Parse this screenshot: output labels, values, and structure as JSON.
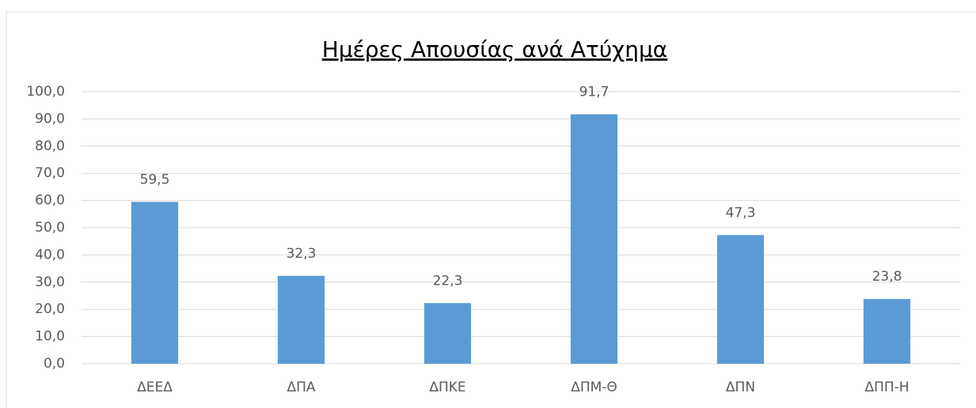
{
  "chart_data": {
    "type": "bar",
    "title": "Ημέρες Απουσίας ανά Ατύχημα",
    "categories": [
      "ΔΕΕΔ",
      "ΔΠΑ",
      "ΔΠΚΕ",
      "ΔΠΜ-Θ",
      "ΔΠΝ",
      "ΔΠΠ-Η"
    ],
    "values": [
      59.5,
      32.3,
      22.3,
      91.7,
      47.3,
      23.8
    ],
    "value_labels": [
      "59,5",
      "32,3",
      "22,3",
      "91,7",
      "47,3",
      "23,8"
    ],
    "color": "#5b9bd5",
    "ylim": [
      0,
      100
    ],
    "yticks": [
      {
        "value": 0,
        "label": "0,0"
      },
      {
        "value": 10,
        "label": "10,0"
      },
      {
        "value": 20,
        "label": "20,0"
      },
      {
        "value": 30,
        "label": "30,0"
      },
      {
        "value": 40,
        "label": "40,0"
      },
      {
        "value": 50,
        "label": "50,0"
      },
      {
        "value": 60,
        "label": "60,0"
      },
      {
        "value": 70,
        "label": "70,0"
      },
      {
        "value": 80,
        "label": "80,0"
      },
      {
        "value": 90,
        "label": "90,0"
      },
      {
        "value": 100,
        "label": "100,0"
      }
    ],
    "grid": true
  }
}
